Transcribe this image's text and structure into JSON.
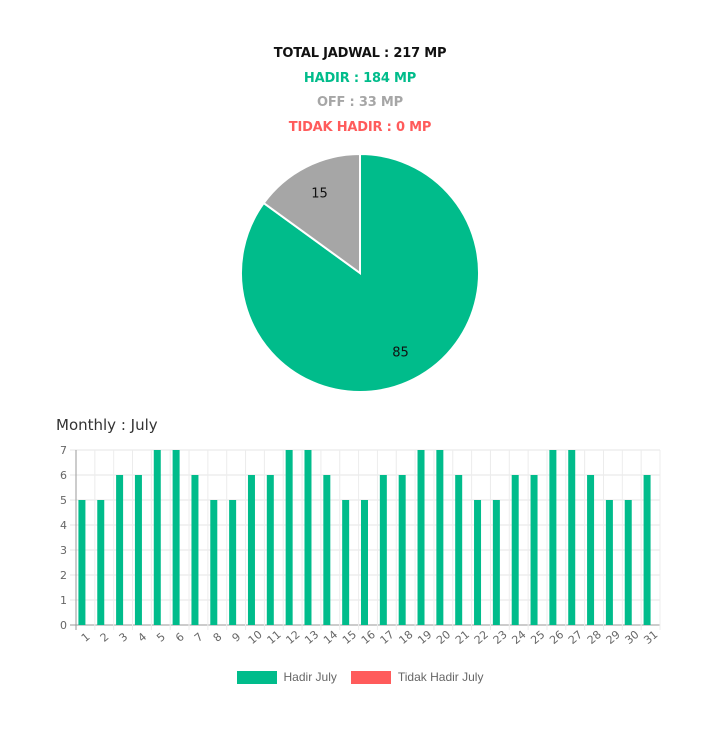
{
  "summary": {
    "total": "TOTAL JADWAL : 217 MP",
    "hadir": "HADIR : 184 MP",
    "off": "OFF : 33 MP",
    "tidak_hadir": "TIDAK HADIR : 0 MP"
  },
  "colors": {
    "total": "#111111",
    "hadir": "#00bc8b",
    "off": "#a6a6a6",
    "tidak_hadir": "#ff5b5b"
  },
  "monthly_title": "Monthly : July",
  "chart_data": [
    {
      "type": "pie",
      "slices": [
        {
          "label": "85",
          "value": 85,
          "color": "#00bc8b"
        },
        {
          "label": "15",
          "value": 15,
          "color": "#a6a6a6"
        }
      ]
    },
    {
      "type": "bar",
      "categories": [
        "1",
        "2",
        "3",
        "4",
        "5",
        "6",
        "7",
        "8",
        "9",
        "10",
        "11",
        "12",
        "13",
        "14",
        "15",
        "16",
        "17",
        "18",
        "19",
        "20",
        "21",
        "22",
        "23",
        "24",
        "25",
        "26",
        "27",
        "28",
        "29",
        "30",
        "31"
      ],
      "series": [
        {
          "name": "Hadir July",
          "color": "#00bc8b",
          "values": [
            5,
            5,
            6,
            6,
            7,
            7,
            6,
            5,
            5,
            6,
            6,
            7,
            7,
            6,
            5,
            5,
            6,
            6,
            7,
            7,
            6,
            5,
            5,
            6,
            6,
            7,
            7,
            6,
            5,
            5,
            6
          ]
        },
        {
          "name": "Tidak Hadir July",
          "color": "#ff5b5b",
          "values": [
            0,
            0,
            0,
            0,
            0,
            0,
            0,
            0,
            0,
            0,
            0,
            0,
            0,
            0,
            0,
            0,
            0,
            0,
            0,
            0,
            0,
            0,
            0,
            0,
            0,
            0,
            0,
            0,
            0,
            0,
            0
          ]
        }
      ],
      "ylim": [
        0,
        7
      ],
      "yticks": [
        0,
        1,
        2,
        3,
        4,
        5,
        6,
        7
      ],
      "grid": true,
      "legend": "bottom"
    }
  ]
}
